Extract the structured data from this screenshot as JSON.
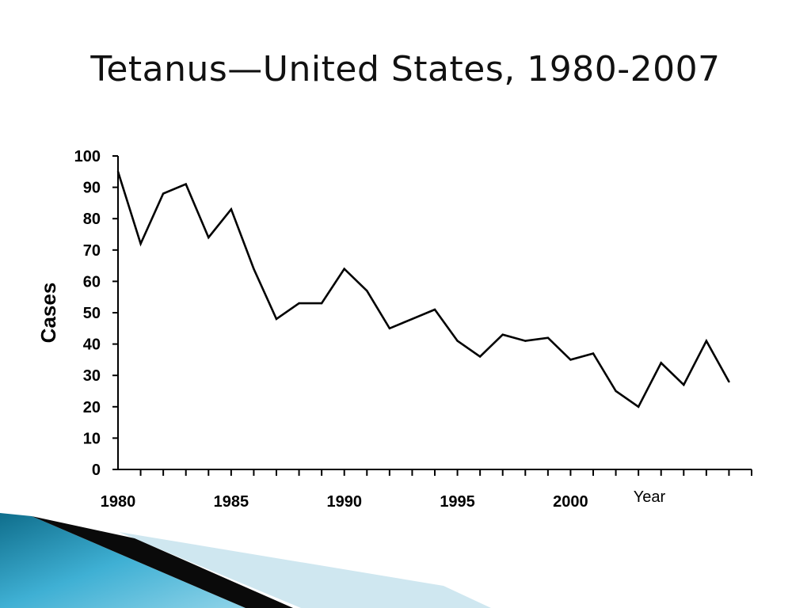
{
  "slide": {
    "title": "Tetanus—United States, 1980-2007"
  },
  "chart_data": {
    "type": "line",
    "title": "Tetanus—United States, 1980-2007",
    "xlabel": "Year",
    "ylabel": "Cases",
    "x": [
      1980,
      1981,
      1982,
      1983,
      1984,
      1985,
      1986,
      1987,
      1988,
      1989,
      1990,
      1991,
      1992,
      1993,
      1994,
      1995,
      1996,
      1997,
      1998,
      1999,
      2000,
      2001,
      2002,
      2003,
      2004,
      2005,
      2006,
      2007
    ],
    "series": [
      {
        "values": [
          95,
          72,
          88,
          91,
          74,
          83,
          64,
          48,
          53,
          53,
          64,
          57,
          45,
          48,
          51,
          41,
          36,
          43,
          41,
          42,
          35,
          37,
          25,
          20,
          34,
          27,
          41,
          28
        ]
      }
    ],
    "xtick_labels": [
      "1980",
      "1985",
      "1990",
      "1995",
      "2000"
    ],
    "ytick_labels": [
      "0",
      "10",
      "20",
      "30",
      "40",
      "50",
      "60",
      "70",
      "80",
      "90",
      "100"
    ],
    "xlim": [
      1980,
      2007
    ],
    "ylim": [
      0,
      100
    ],
    "grid": false,
    "line_color": "#000000"
  },
  "decor": {
    "colors": [
      "#0f6e8c",
      "#2a9ec4",
      "#5bc2de",
      "#c9e5ef",
      "#0a0a0a"
    ]
  }
}
